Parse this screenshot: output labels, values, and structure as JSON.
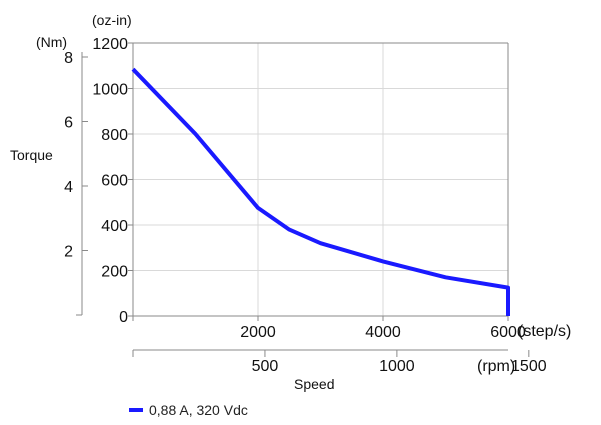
{
  "chart_data": {
    "type": "line",
    "series": [
      {
        "name": "0,88 A, 320 Vdc",
        "color": "#1a1aff",
        "x": [
          0,
          1000,
          2000,
          2500,
          3000,
          4000,
          5000,
          6000,
          6000
        ],
        "y": [
          1085,
          800,
          475,
          380,
          320,
          240,
          170,
          125,
          0
        ]
      }
    ],
    "axes": {
      "y_torque_nm": {
        "unit_label": "(Nm)",
        "ticks": [
          "8",
          "6",
          "4",
          "2"
        ],
        "tick_values": [
          8,
          6,
          4,
          2
        ]
      },
      "y_torque_ozin": {
        "unit_label": "(oz-in)",
        "ticks": [
          "1200",
          "1000",
          "800",
          "600",
          "400",
          "200",
          "0"
        ],
        "tick_values": [
          1200,
          1000,
          800,
          600,
          400,
          200,
          0
        ],
        "ylim": [
          0,
          1200
        ]
      },
      "y_title": "Torque",
      "x_steps": {
        "unit_label": "(step/s)",
        "ticks": [
          "2000",
          "4000",
          "6000"
        ],
        "tick_values": [
          2000,
          4000,
          6000
        ],
        "xlim": [
          0,
          6000
        ]
      },
      "x_rpm": {
        "unit_label": "(rpm)",
        "ticks": [
          "500",
          "1000",
          "1500"
        ],
        "tick_values": [
          500,
          1000,
          1500
        ]
      },
      "x_title": "Speed"
    },
    "grid": true,
    "legend_position": "bottom-left"
  }
}
